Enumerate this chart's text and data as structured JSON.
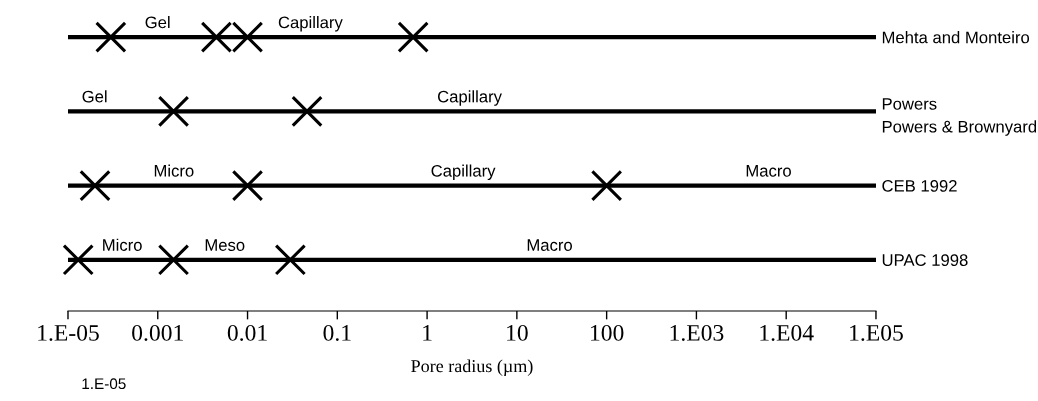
{
  "chart_data": {
    "type": "scatter",
    "orientation": "horizontal",
    "xlabel": "Pore radius (µm)",
    "log": "x",
    "xlim": [
      0.0001,
      100000
    ],
    "xticks": [
      {
        "value": 0.0001,
        "label": "1.E-05"
      },
      {
        "value": 0.001,
        "label": "0.001"
      },
      {
        "value": 0.01,
        "label": "0.01"
      },
      {
        "value": 0.1,
        "label": "0.1"
      },
      {
        "value": 1,
        "label": "1"
      },
      {
        "value": 10,
        "label": "10"
      },
      {
        "value": 100,
        "label": "100"
      },
      {
        "value": 1000,
        "label": "1.E03"
      },
      {
        "value": 10000,
        "label": "1.E04"
      },
      {
        "value": 100000,
        "label": "1.E05"
      }
    ],
    "categories": [
      "Mehta and Monteiro",
      "Powers\nPowers & Brownyard",
      "CEB 1992",
      "UPAC 1998"
    ],
    "grid": "y",
    "legend": false,
    "marker": "cross",
    "series": [
      {
        "color": "#000000",
        "values": [
          0.0003,
          0.0015,
          0.0002,
          0.00013
        ]
      },
      {
        "color": "#000000",
        "values": [
          0.0045,
          0.046,
          0.01,
          0.0015
        ]
      },
      {
        "color": "#000000",
        "values": [
          0.01,
          null,
          100,
          0.03
        ]
      },
      {
        "color": "#000000",
        "values": [
          0.7,
          null,
          null,
          null
        ]
      }
    ],
    "annotations": [
      "Gel",
      "Capillary",
      "Gel",
      "Capillary",
      "Micro",
      "Capillary",
      "Macro",
      "Micro",
      "Meso",
      "Macro",
      "1.E-05"
    ]
  }
}
